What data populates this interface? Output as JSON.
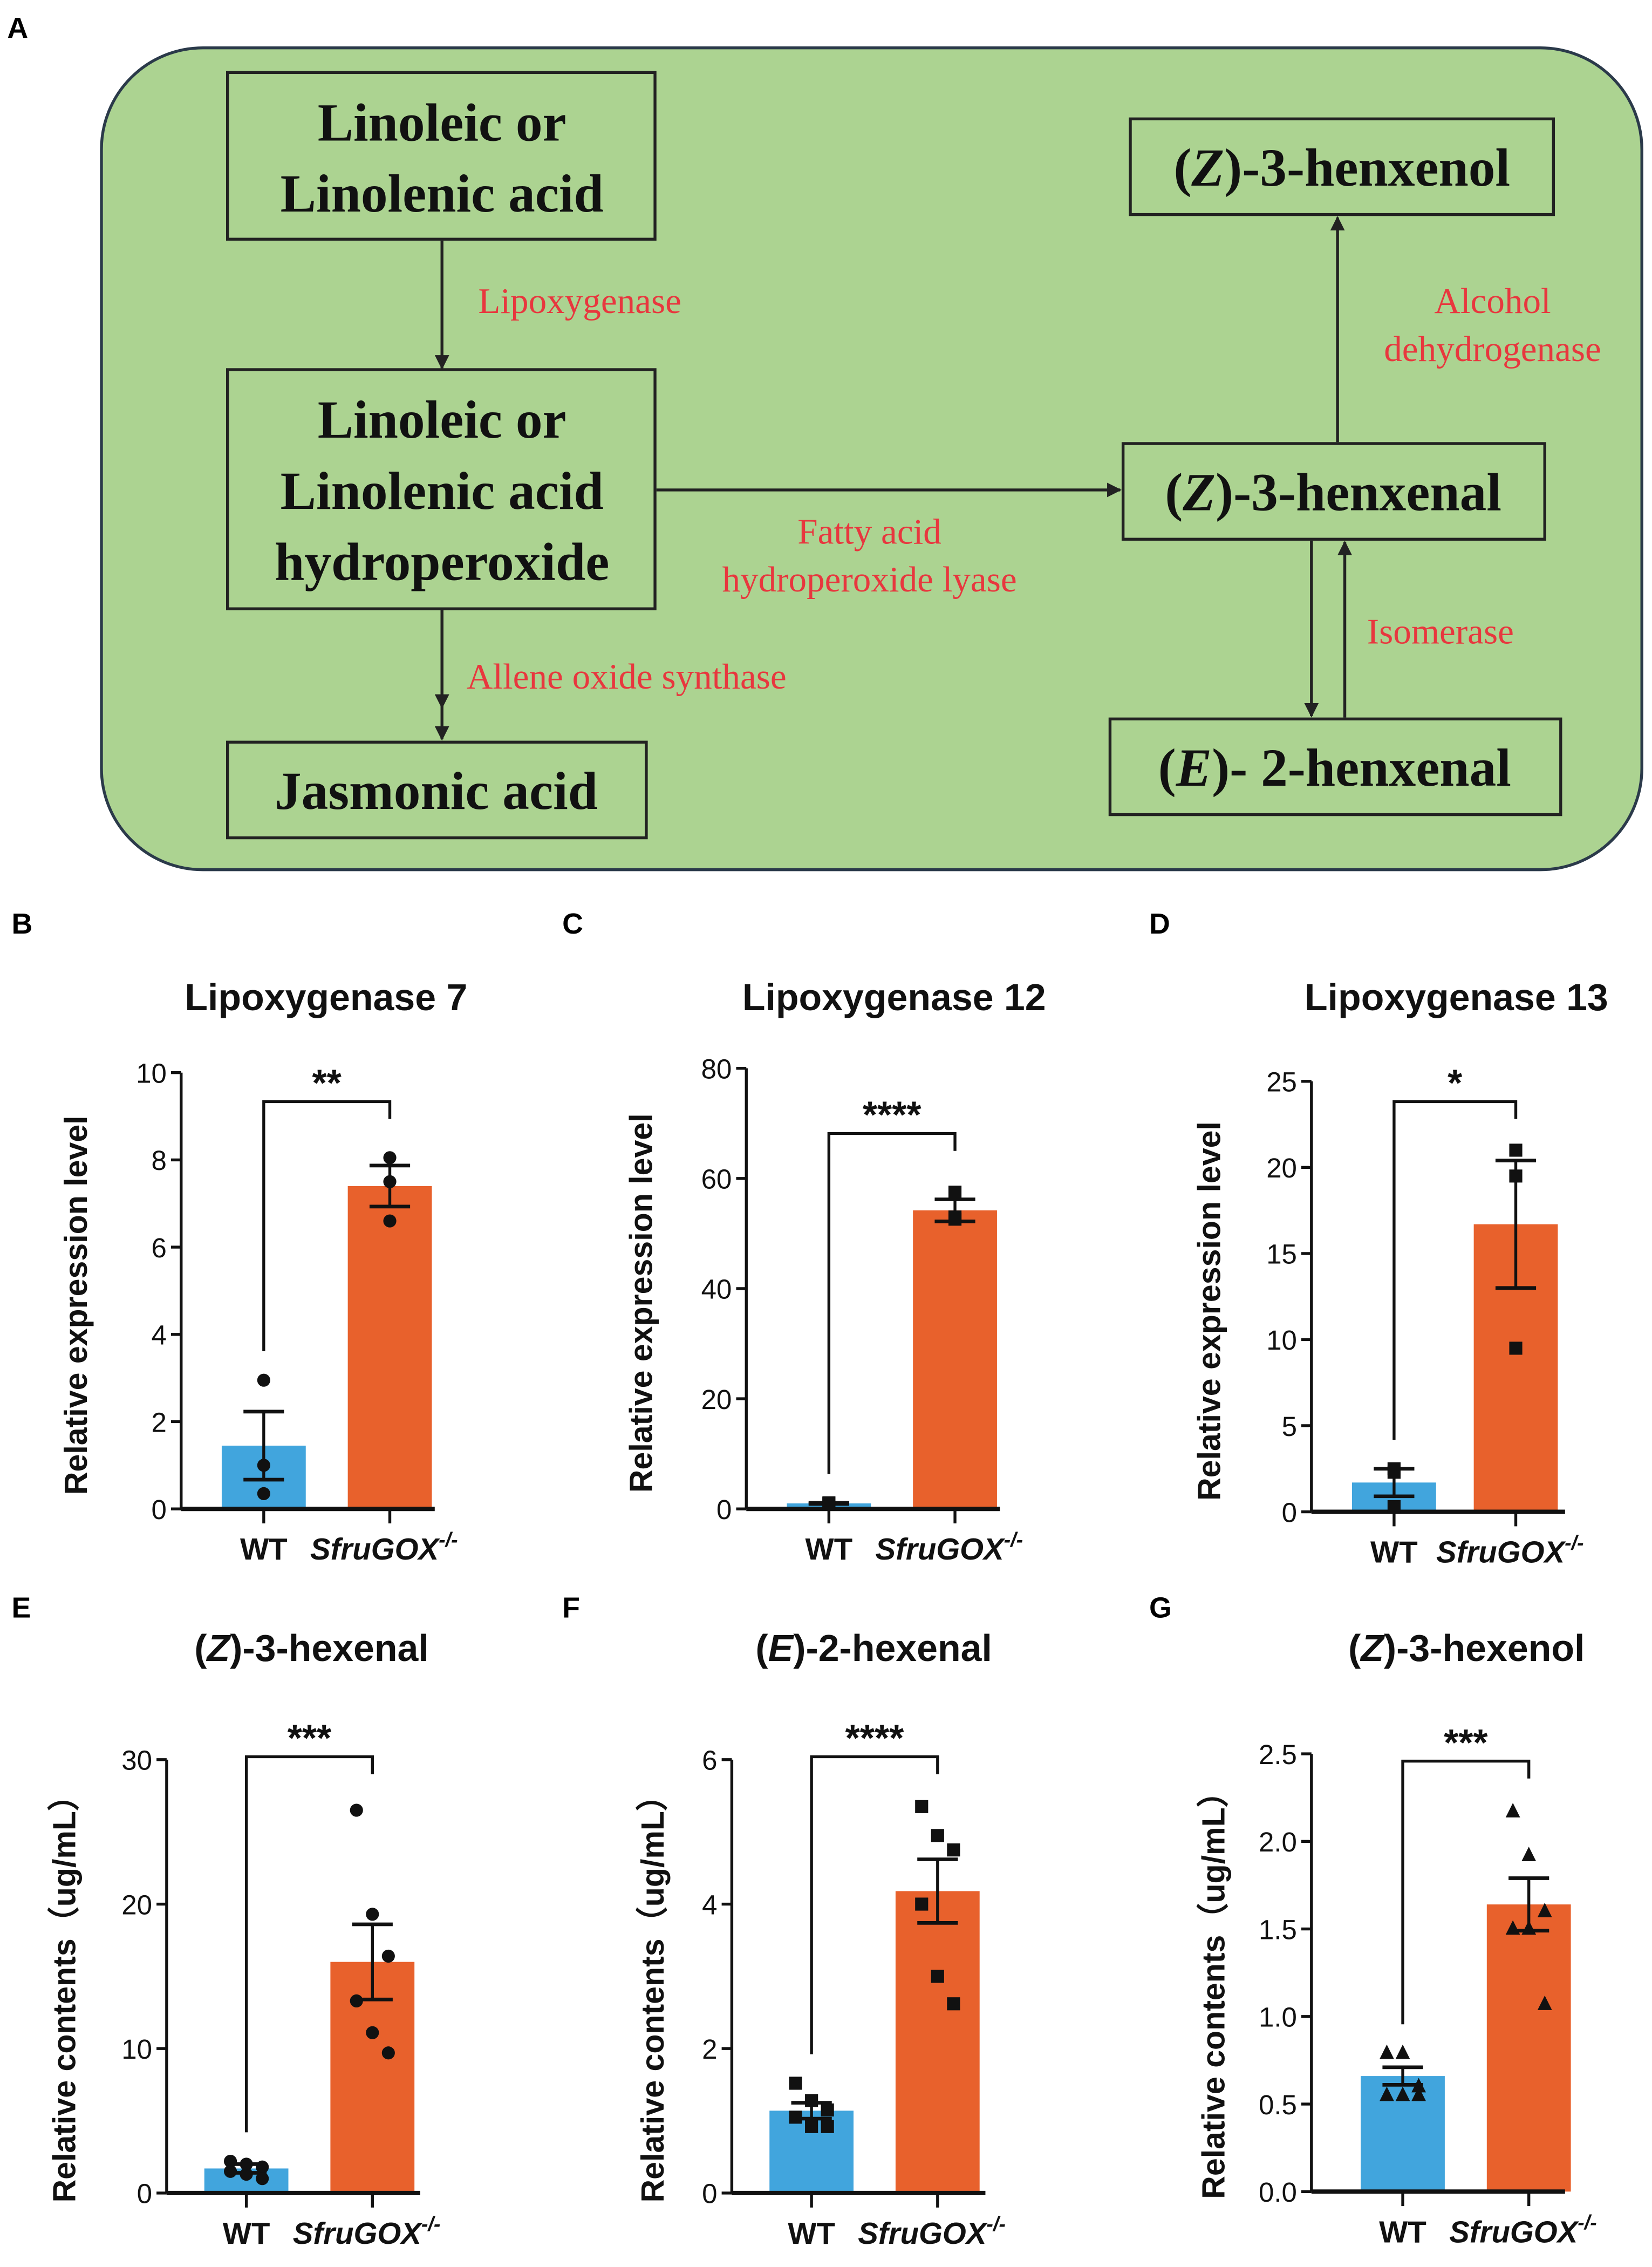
{
  "panel_letters": [
    "A",
    "B",
    "C",
    "D",
    "E",
    "F",
    "G"
  ],
  "diagram": {
    "colors": {
      "background": "#acd391",
      "border": "#2b3a4a",
      "enzyme_text": "#e8373e"
    },
    "boxes": {
      "substrate": [
        "Linoleic or",
        "Linolenic acid"
      ],
      "hydroperoxide": [
        "Linoleic or",
        "Linolenic acid",
        "hydroperoxide"
      ],
      "jasmonic": "Jasmonic acid",
      "z3_henxenol": {
        "pre": "(",
        "it": "Z",
        "post": ")-3-henxenol"
      },
      "z3_henxenal": {
        "pre": "(",
        "it": "Z",
        "post": ")-3-henxenal"
      },
      "e2_henxenal": {
        "pre": "(",
        "it": "E",
        "post": ")- 2-henxenal"
      }
    },
    "enzymes": {
      "lipoxygenase": "Lipoxygenase",
      "hpl": [
        "Fatty acid",
        "hydroperoxide lyase"
      ],
      "aos": "Allene oxide synthase",
      "adh": [
        "Alcohol",
        "dehydrogenase"
      ],
      "isomerase": "Isomerase"
    }
  },
  "chart_data": [
    {
      "panel": "B",
      "type": "bar",
      "title": "Lipoxygenase 7",
      "ylabel": "Relative expression level",
      "ylim": [
        0,
        10
      ],
      "yticks": [
        "0",
        "2",
        "4",
        "6",
        "8",
        "10"
      ],
      "tickvals": [
        0,
        2,
        4,
        6,
        8,
        10
      ],
      "categories": [
        "WT",
        "SfruGOX"
      ],
      "superscript": "-/-",
      "significance": "**",
      "marker": "circle",
      "series": [
        {
          "name": "WT",
          "mean": 1.45,
          "sem": 0.78,
          "points": [
            2.95,
            1.0,
            0.35
          ],
          "color": "#41a5dd"
        },
        {
          "name": "SfruGOX-/-",
          "mean": 7.4,
          "sem": 0.47,
          "points": [
            8.05,
            7.5,
            6.6
          ],
          "color": "#e8612c"
        }
      ]
    },
    {
      "panel": "C",
      "type": "bar",
      "title": "Lipoxygenase 12",
      "ylabel": "Relative expression level",
      "ylim": [
        0,
        80
      ],
      "yticks": [
        "0",
        "20",
        "40",
        "60",
        "80"
      ],
      "tickvals": [
        0,
        20,
        40,
        60,
        80
      ],
      "categories": [
        "WT",
        "SfruGOX"
      ],
      "superscript": "-/-",
      "significance": "****",
      "marker": "square",
      "series": [
        {
          "name": "WT",
          "mean": 1.0,
          "sem": 0.1,
          "points": [
            1.1,
            1.0,
            0.9
          ],
          "color": "#41a5dd"
        },
        {
          "name": "SfruGOX-/-",
          "mean": 54.2,
          "sem": 2.0,
          "points": [
            57.5,
            53.0,
            52.6
          ],
          "color": "#e8612c"
        }
      ]
    },
    {
      "panel": "D",
      "type": "bar",
      "title": "Lipoxygenase 13",
      "ylabel": "Relative expression level",
      "ylim": [
        0,
        25
      ],
      "yticks": [
        "0",
        "5",
        "10",
        "15",
        "20",
        "25"
      ],
      "tickvals": [
        0,
        5,
        10,
        15,
        20,
        25
      ],
      "categories": [
        "WT",
        "SfruGOX"
      ],
      "superscript": "-/-",
      "significance": "*",
      "marker": "square",
      "series": [
        {
          "name": "WT",
          "mean": 1.7,
          "sem": 0.8,
          "points": [
            2.5,
            2.3,
            0.3
          ],
          "color": "#41a5dd"
        },
        {
          "name": "SfruGOX-/-",
          "mean": 16.7,
          "sem": 3.7,
          "points": [
            21.0,
            19.5,
            9.5
          ],
          "color": "#e8612c"
        }
      ]
    },
    {
      "panel": "E",
      "type": "bar",
      "title": {
        "pre": "(",
        "it": "Z",
        "post": ")-3-hexenal"
      },
      "ylabel": "Relative contents（ug/mL）",
      "ylim": [
        0,
        30
      ],
      "yticks": [
        "0",
        "10",
        "20",
        "30"
      ],
      "tickvals": [
        0,
        10,
        20,
        30
      ],
      "categories": [
        "WT",
        "SfruGOX"
      ],
      "superscript": "-/-",
      "significance": "***",
      "marker": "circle",
      "series": [
        {
          "name": "WT",
          "mean": 1.7,
          "sem": 0.3,
          "points": [
            2.2,
            2.0,
            1.8,
            1.5,
            1.3,
            1.0
          ],
          "color": "#41a5dd"
        },
        {
          "name": "SfruGOX-/-",
          "mean": 16.0,
          "sem": 2.6,
          "points": [
            26.5,
            19.3,
            16.4,
            13.3,
            11.1,
            9.7
          ],
          "color": "#e8612c"
        }
      ]
    },
    {
      "panel": "F",
      "type": "bar",
      "title": {
        "pre": "(",
        "it": "E",
        "post": ")-2-hexenal"
      },
      "ylabel": "Relative contents（ug/mL）",
      "ylim": [
        0,
        6
      ],
      "yticks": [
        "0",
        "2",
        "4",
        "6"
      ],
      "tickvals": [
        0,
        2,
        4,
        6
      ],
      "categories": [
        "WT",
        "SfruGOX"
      ],
      "superscript": "-/-",
      "significance": "****",
      "marker": "square",
      "series": [
        {
          "name": "WT",
          "mean": 1.14,
          "sem": 0.11,
          "points": [
            1.52,
            1.28,
            1.15,
            1.05,
            0.92,
            0.92
          ],
          "color": "#41a5dd"
        },
        {
          "name": "SfruGOX-/-",
          "mean": 4.18,
          "sem": 0.44,
          "points": [
            5.35,
            4.95,
            4.75,
            4.0,
            3.0,
            2.62
          ],
          "color": "#e8612c"
        }
      ]
    },
    {
      "panel": "G",
      "type": "bar",
      "title": {
        "pre": "(",
        "it": "Z",
        "post": ")-3-hexenol"
      },
      "ylabel": "Relative contents（ug/mL）",
      "ylim": [
        0,
        2.5
      ],
      "yticks": [
        "0.0",
        "0.5",
        "1.0",
        "1.5",
        "2.0",
        "2.5"
      ],
      "tickvals": [
        0,
        0.5,
        1,
        1.5,
        2,
        2.5
      ],
      "categories": [
        "WT",
        "SfruGOX"
      ],
      "superscript": "-/-",
      "significance": "***",
      "marker": "triangle",
      "series": [
        {
          "name": "WT",
          "mean": 0.66,
          "sem": 0.05,
          "points": [
            0.79,
            0.79,
            0.6,
            0.55,
            0.55,
            0.55
          ],
          "color": "#41a5dd"
        },
        {
          "name": "SfruGOX-/-",
          "mean": 1.64,
          "sem": 0.15,
          "points": [
            2.17,
            1.92,
            1.6,
            1.5,
            1.5,
            1.07
          ],
          "color": "#e8612c"
        }
      ]
    }
  ]
}
